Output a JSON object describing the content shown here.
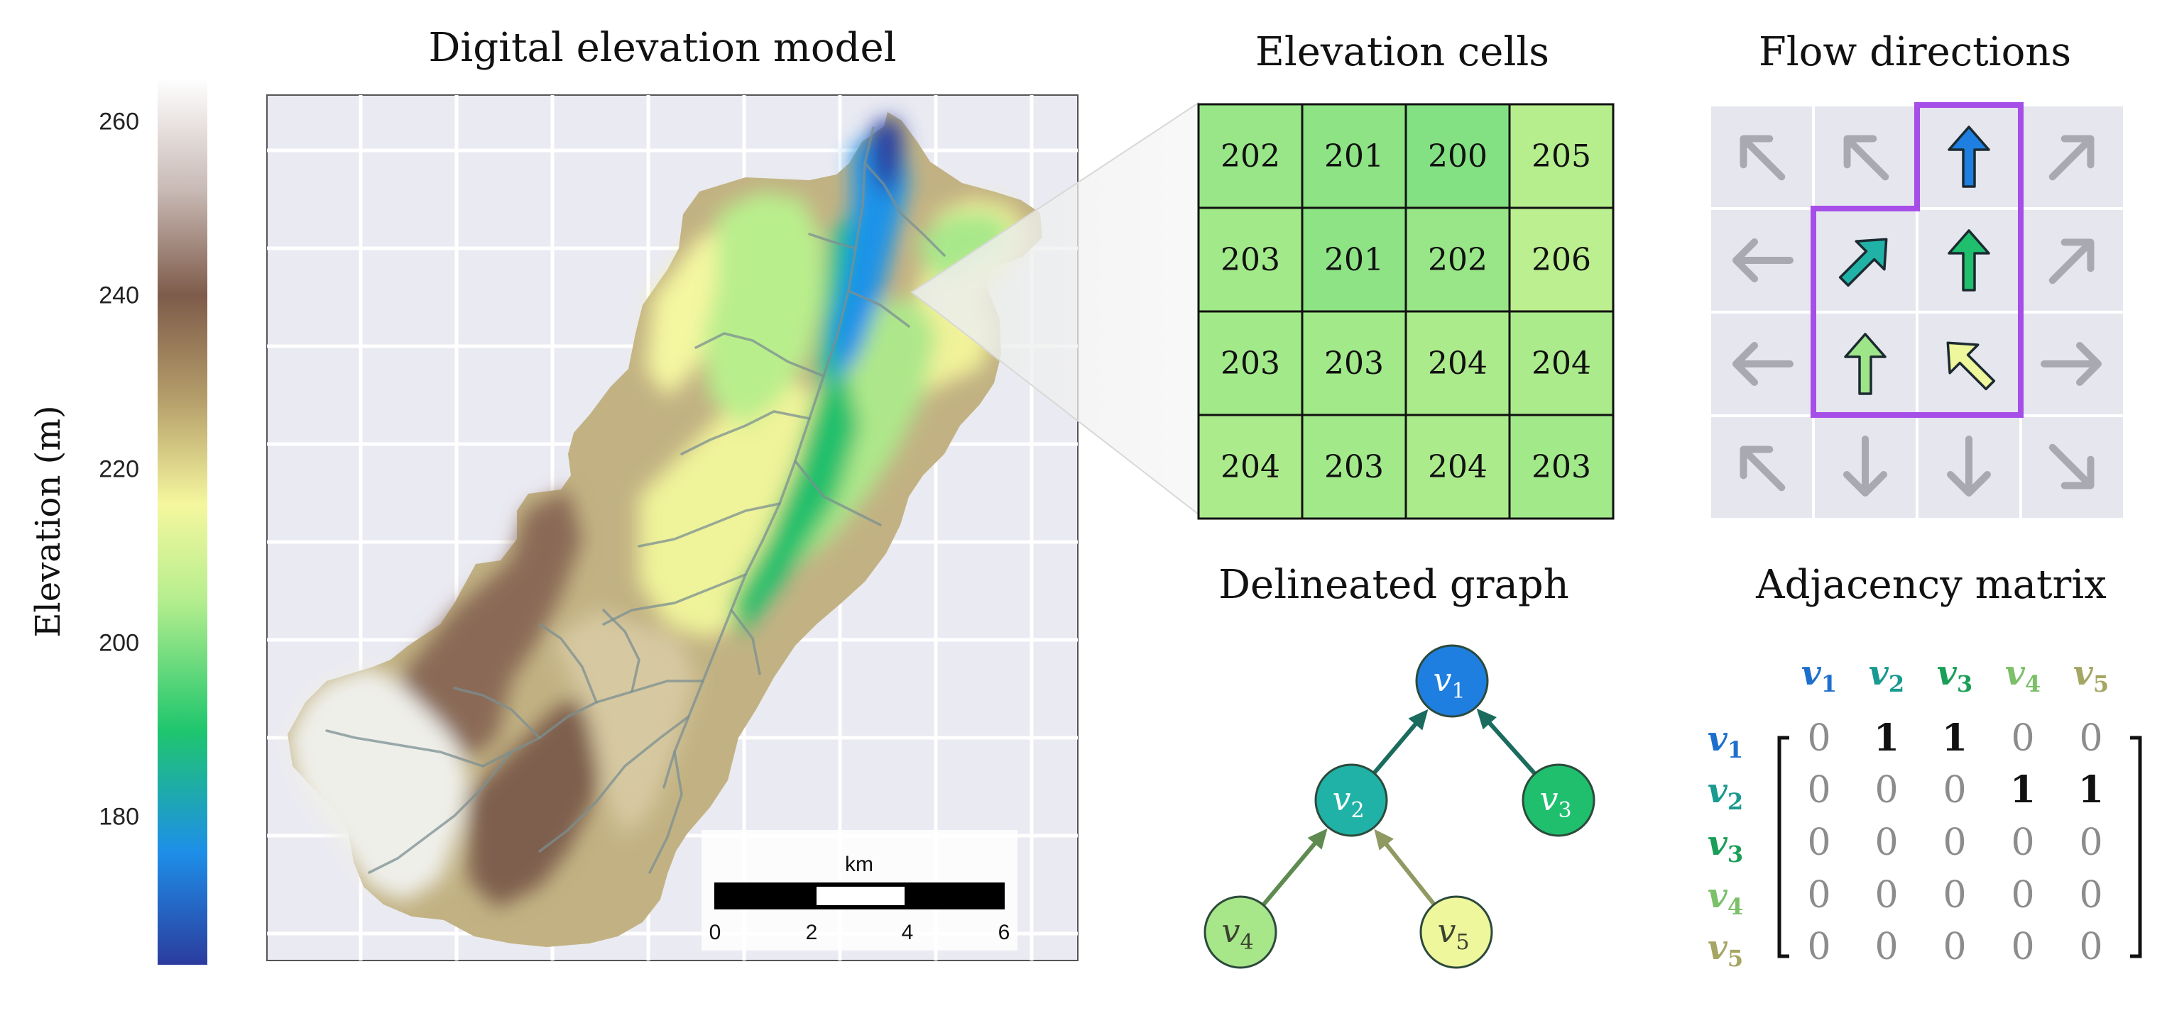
{
  "colorbar": {
    "label": "Elevation (m)",
    "ticks": [
      {
        "value": 260,
        "label": "260"
      },
      {
        "value": 240,
        "label": "240"
      },
      {
        "value": 220,
        "label": "220"
      },
      {
        "value": 200,
        "label": "200"
      },
      {
        "value": 180,
        "label": "180"
      }
    ],
    "range": [
      163,
      265
    ],
    "stops": [
      {
        "value": 163,
        "color": "#2b3c9e"
      },
      {
        "value": 176,
        "color": "#1e8fe8"
      },
      {
        "value": 190,
        "color": "#1fc66d"
      },
      {
        "value": 205,
        "color": "#b6ee8e"
      },
      {
        "value": 216,
        "color": "#f5f79e"
      },
      {
        "value": 228,
        "color": "#b59e6a"
      },
      {
        "value": 240,
        "color": "#7e5b4a"
      },
      {
        "value": 252,
        "color": "#c8b9b4"
      },
      {
        "value": 265,
        "color": "#ffffff"
      }
    ]
  },
  "dem": {
    "title": "Digital elevation model",
    "scalebar": {
      "unit": "km",
      "ticks": [
        "0",
        "2",
        "4",
        "6"
      ]
    }
  },
  "cells": {
    "title": "Elevation cells",
    "grid": [
      [
        "202",
        "201",
        "200",
        "205"
      ],
      [
        "203",
        "201",
        "202",
        "206"
      ],
      [
        "203",
        "203",
        "204",
        "204"
      ],
      [
        "204",
        "203",
        "204",
        "203"
      ]
    ]
  },
  "flow": {
    "title": "Flow directions",
    "grid": [
      [
        "nw",
        "nw",
        "n",
        "ne"
      ],
      [
        "w",
        "ne",
        "n",
        "ne"
      ],
      [
        "w",
        "n",
        "nw",
        "e"
      ],
      [
        "nw",
        "s",
        "s",
        "se"
      ]
    ],
    "highlighted": [
      [
        0,
        2,
        "#1e7fe0"
      ],
      [
        1,
        1,
        "#20b2a6"
      ],
      [
        1,
        2,
        "#1fbf6e"
      ],
      [
        2,
        1,
        "#9ee58a"
      ],
      [
        2,
        2,
        "#eef79c"
      ]
    ],
    "outline_color": "#a64ee8"
  },
  "graph": {
    "title": "Delineated graph",
    "nodes": [
      {
        "id": "v1",
        "letter": "v",
        "sub": "1",
        "fill": "#1e7fe0"
      },
      {
        "id": "v2",
        "letter": "v",
        "sub": "2",
        "fill": "#20b2a6"
      },
      {
        "id": "v3",
        "letter": "v",
        "sub": "3",
        "fill": "#1fbf6e"
      },
      {
        "id": "v4",
        "letter": "v",
        "sub": "4",
        "fill": "#a8e68a"
      },
      {
        "id": "v5",
        "letter": "v",
        "sub": "5",
        "fill": "#eef79c"
      }
    ],
    "edges": [
      {
        "from": "v2",
        "to": "v1",
        "color": "#1b6b5e"
      },
      {
        "from": "v3",
        "to": "v1",
        "color": "#1b6b5e"
      },
      {
        "from": "v4",
        "to": "v2",
        "color": "#5f8a50"
      },
      {
        "from": "v5",
        "to": "v2",
        "color": "#8f9a62"
      }
    ]
  },
  "adjacency": {
    "title": "Adjacency matrix",
    "labels": [
      {
        "letter": "v",
        "sub": "1",
        "color": "#1e6fcc"
      },
      {
        "letter": "v",
        "sub": "2",
        "color": "#1a9a90"
      },
      {
        "letter": "v",
        "sub": "3",
        "color": "#1a9e58"
      },
      {
        "letter": "v",
        "sub": "4",
        "color": "#7cc06a"
      },
      {
        "letter": "v",
        "sub": "5",
        "color": "#a6a664"
      }
    ],
    "matrix": [
      [
        "0",
        "1",
        "1",
        "0",
        "0"
      ],
      [
        "0",
        "0",
        "0",
        "1",
        "1"
      ],
      [
        "0",
        "0",
        "0",
        "0",
        "0"
      ],
      [
        "0",
        "0",
        "0",
        "0",
        "0"
      ],
      [
        "0",
        "0",
        "0",
        "0",
        "0"
      ]
    ]
  }
}
